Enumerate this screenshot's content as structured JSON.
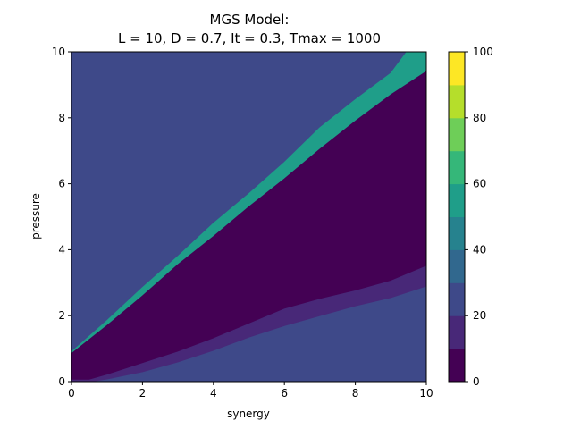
{
  "chart_data": {
    "type": "heatmap",
    "title": [
      "MGS Model:",
      "L = 10, D = 0.7, It = 0.3, Tmax = 1000"
    ],
    "xlabel": "synergy",
    "ylabel": "pressure",
    "xlim": [
      0,
      10
    ],
    "ylim": [
      0,
      10
    ],
    "xticks": [
      "0",
      "2",
      "4",
      "6",
      "8",
      "10"
    ],
    "yticks": [
      "0",
      "2",
      "4",
      "6",
      "8",
      "10"
    ],
    "colorbar": {
      "range": [
        0,
        100
      ],
      "ticks": [
        "0",
        "20",
        "40",
        "60",
        "80",
        "100"
      ],
      "levels": [
        0,
        10,
        20,
        30,
        40,
        50,
        60,
        70,
        80,
        90,
        100
      ],
      "colors": [
        "#440154",
        "#482878",
        "#3e4989",
        "#31688e",
        "#26828e",
        "#1f9e89",
        "#35b779",
        "#6ece58",
        "#b5de2b",
        "#fde725"
      ]
    },
    "regions": [
      {
        "level_band": "20-30",
        "color": "#3e4989",
        "description_shape": "background",
        "boundary": []
      },
      {
        "level_band": "50-60",
        "color": "#1f9e89",
        "boundary": [
          [
            0,
            0.9
          ],
          [
            1,
            1.85
          ],
          [
            2,
            2.85
          ],
          [
            3,
            3.8
          ],
          [
            4,
            4.8
          ],
          [
            5,
            5.7
          ],
          [
            6,
            6.65
          ],
          [
            7,
            7.7
          ],
          [
            8,
            8.55
          ],
          [
            9,
            9.35
          ],
          [
            9.45,
            10
          ],
          [
            10,
            10
          ],
          [
            10,
            9.4
          ],
          [
            9,
            8.7
          ],
          [
            8,
            7.9
          ],
          [
            7,
            7.05
          ],
          [
            6,
            6.15
          ],
          [
            5,
            5.3
          ],
          [
            4,
            4.4
          ],
          [
            3,
            3.55
          ],
          [
            2,
            2.6
          ],
          [
            1,
            1.7
          ],
          [
            0,
            0.85
          ]
        ]
      },
      {
        "level_band": "0-10",
        "color": "#440154",
        "boundary": [
          [
            0,
            0.85
          ],
          [
            1,
            1.7
          ],
          [
            2,
            2.6
          ],
          [
            3,
            3.55
          ],
          [
            4,
            4.4
          ],
          [
            5,
            5.3
          ],
          [
            6,
            6.15
          ],
          [
            7,
            7.05
          ],
          [
            8,
            7.9
          ],
          [
            9,
            8.7
          ],
          [
            10,
            9.4
          ],
          [
            10,
            3.5
          ],
          [
            9,
            3.05
          ],
          [
            8,
            2.75
          ],
          [
            7,
            2.5
          ],
          [
            6,
            2.2
          ],
          [
            5,
            1.75
          ],
          [
            4,
            1.3
          ],
          [
            3,
            0.9
          ],
          [
            2,
            0.55
          ],
          [
            1,
            0.2
          ],
          [
            0.5,
            0.05
          ],
          [
            0,
            0.05
          ]
        ]
      },
      {
        "level_band": "10-20",
        "color": "#482878",
        "boundary": [
          [
            0,
            0.05
          ],
          [
            0.5,
            0.05
          ],
          [
            1,
            0.2
          ],
          [
            2,
            0.55
          ],
          [
            3,
            0.9
          ],
          [
            4,
            1.3
          ],
          [
            5,
            1.75
          ],
          [
            6,
            2.2
          ],
          [
            7,
            2.5
          ],
          [
            8,
            2.75
          ],
          [
            9,
            3.05
          ],
          [
            10,
            3.5
          ],
          [
            10,
            2.9
          ],
          [
            9,
            2.55
          ],
          [
            8,
            2.3
          ],
          [
            7,
            2.0
          ],
          [
            6,
            1.7
          ],
          [
            5,
            1.35
          ],
          [
            4,
            0.95
          ],
          [
            3,
            0.6
          ],
          [
            2,
            0.3
          ],
          [
            1,
            0.08
          ],
          [
            0.5,
            0
          ],
          [
            0,
            0
          ]
        ]
      }
    ]
  }
}
